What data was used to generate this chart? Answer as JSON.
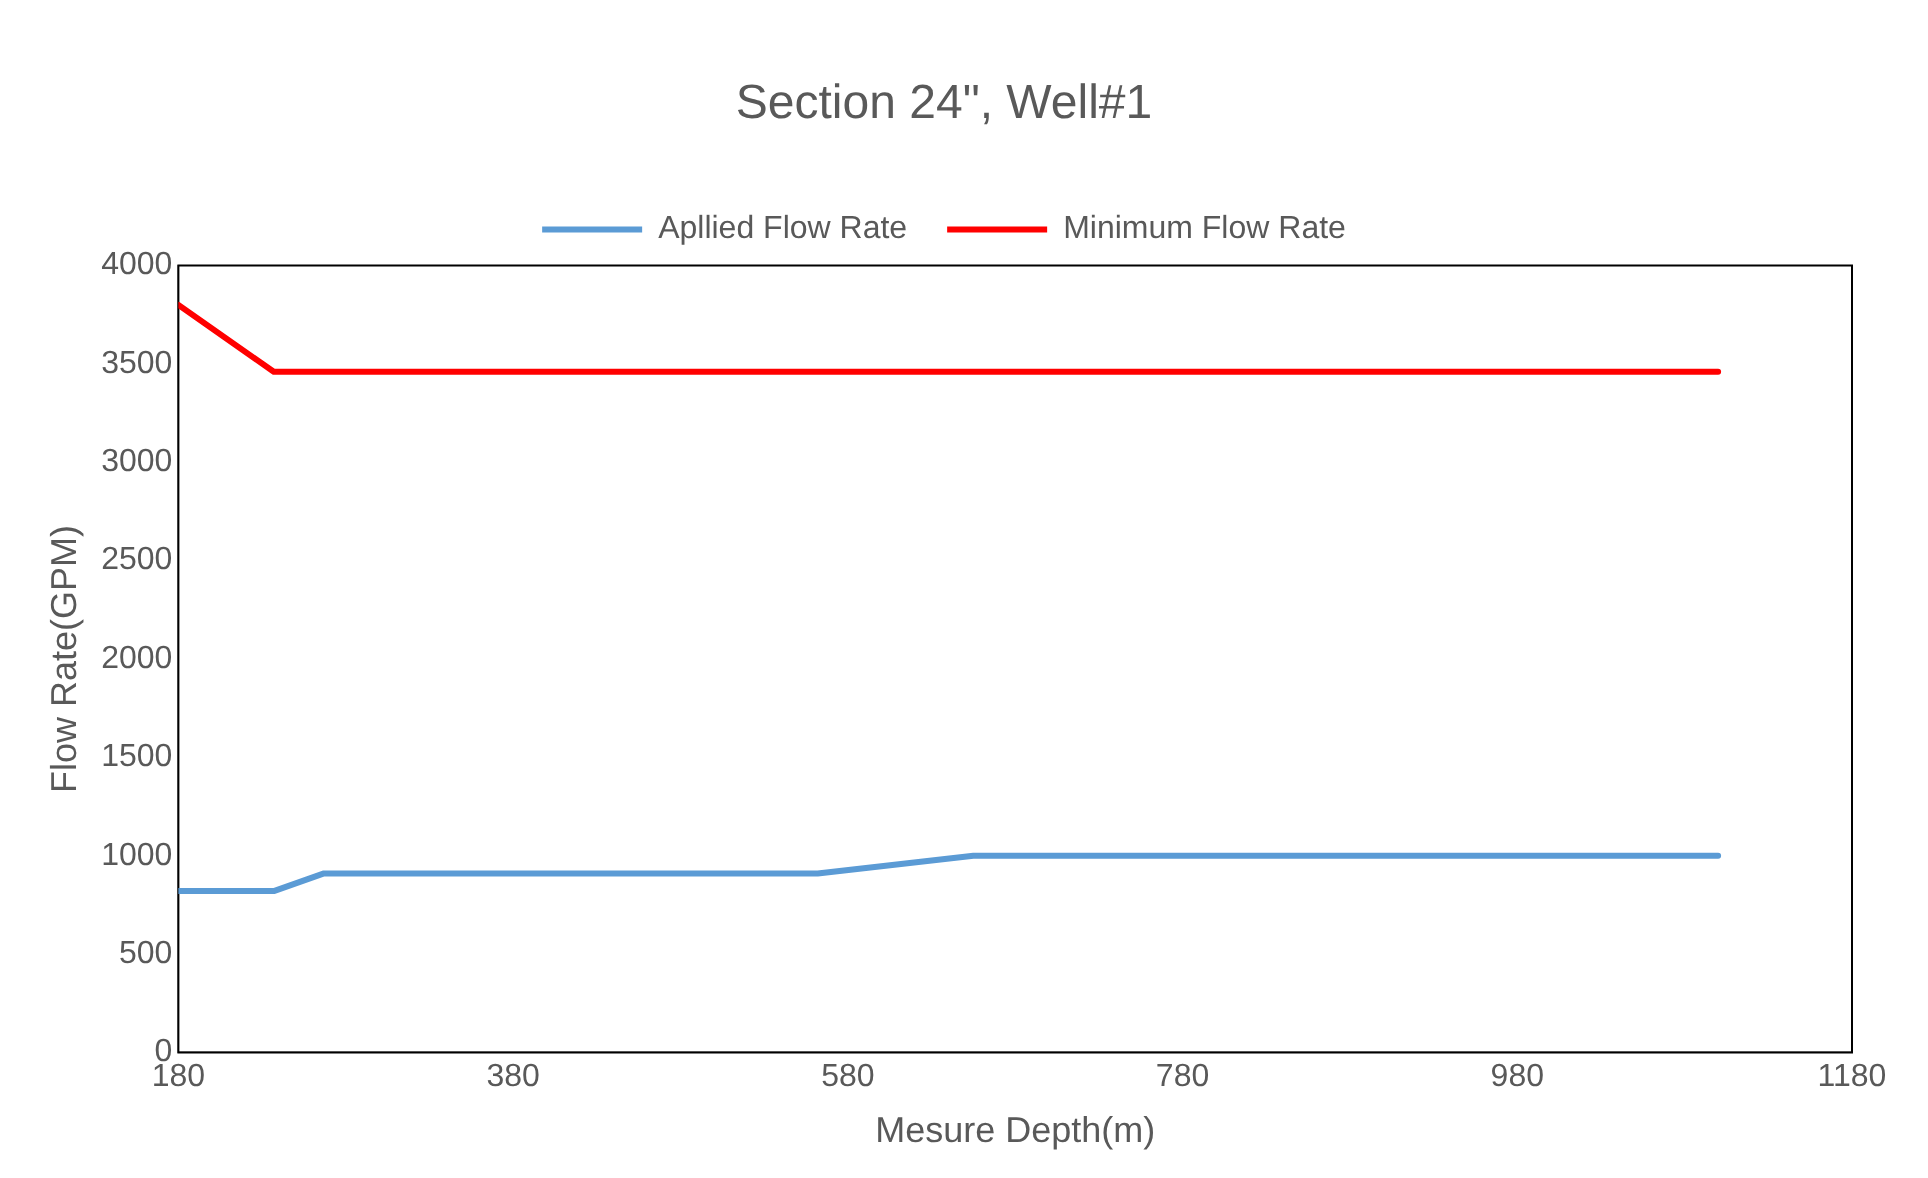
{
  "chart_data": {
    "type": "line",
    "title": "Section 24\", Well#1",
    "xlabel": "Mesure Depth(m)",
    "ylabel": "Flow Rate(GPM)",
    "xlim": [
      180,
      1180
    ],
    "xticks": [
      180,
      380,
      580,
      780,
      980,
      1180
    ],
    "ylim": [
      0,
      4000
    ],
    "yticks": [
      0,
      500,
      1000,
      1500,
      2000,
      2500,
      3000,
      3500,
      4000
    ],
    "grid": false,
    "legend": "top",
    "marker": "none",
    "line_style": "solid",
    "series": [
      {
        "name": "Apllied Flow Rate",
        "color": "#5b9bd5",
        "x": [
          180,
          237,
          267,
          562,
          655,
          1100
        ],
        "values": [
          820,
          820,
          910,
          910,
          1000,
          1000
        ]
      },
      {
        "name": "Minimum Flow Rate",
        "color": "#ff0000",
        "x": [
          180,
          237,
          1100
        ],
        "values": [
          3800,
          3460,
          3460
        ]
      }
    ]
  }
}
